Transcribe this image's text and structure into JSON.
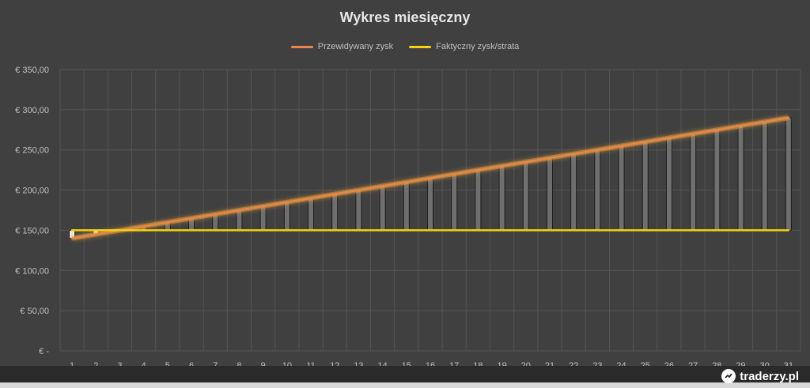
{
  "colors": {
    "background": "#404040",
    "grid": "#555555",
    "predicted_line": "#e8874a",
    "predicted_glow": "#f2a33a",
    "actual_line": "#f5d30f",
    "bar_fill": "#6f6f6f",
    "bar_up_fill": "#e8e8e8",
    "bar_stroke": "#1e1e1e",
    "text": "#bfbfbf"
  },
  "watermark": {
    "text": "traderzy.pl",
    "icon": "traderzy-logo-icon"
  },
  "chart_data": {
    "type": "line",
    "title": "Wykres miesięczny",
    "xlabel": "",
    "ylabel": "",
    "categories": [
      "1",
      "2",
      "3",
      "4",
      "5",
      "6",
      "7",
      "8",
      "9",
      "10",
      "11",
      "12",
      "13",
      "14",
      "15",
      "16",
      "17",
      "18",
      "19",
      "20",
      "21",
      "22",
      "23",
      "24",
      "25",
      "26",
      "27",
      "28",
      "29",
      "30",
      "31"
    ],
    "ylim": [
      0,
      350
    ],
    "y_ticks": [
      0,
      50,
      100,
      150,
      200,
      250,
      300,
      350
    ],
    "y_tick_labels": [
      "€ -",
      "€ 50,00",
      "€ 100,00",
      "€ 150,00",
      "€ 200,00",
      "€ 250,00",
      "€ 300,00",
      "€ 350,00"
    ],
    "grid": true,
    "legend_position": "top",
    "series": [
      {
        "name": "Przewidywany zysk",
        "color": "#e8874a",
        "values": [
          140,
          145,
          150,
          155,
          160,
          165,
          170,
          175,
          180,
          185,
          190,
          195,
          200,
          205,
          210,
          215,
          220,
          225,
          230,
          235,
          240,
          245,
          250,
          255,
          260,
          265,
          270,
          275,
          280,
          285,
          290
        ]
      },
      {
        "name": "Faktyczny zysk/strata",
        "color": "#f5d30f",
        "values": [
          150,
          150,
          150,
          150,
          150,
          150,
          150,
          150,
          150,
          150,
          150,
          150,
          150,
          150,
          150,
          150,
          150,
          150,
          150,
          150,
          150,
          150,
          150,
          150,
          150,
          150,
          150,
          150,
          150,
          150,
          150
        ]
      }
    ],
    "updown_bars": true
  }
}
